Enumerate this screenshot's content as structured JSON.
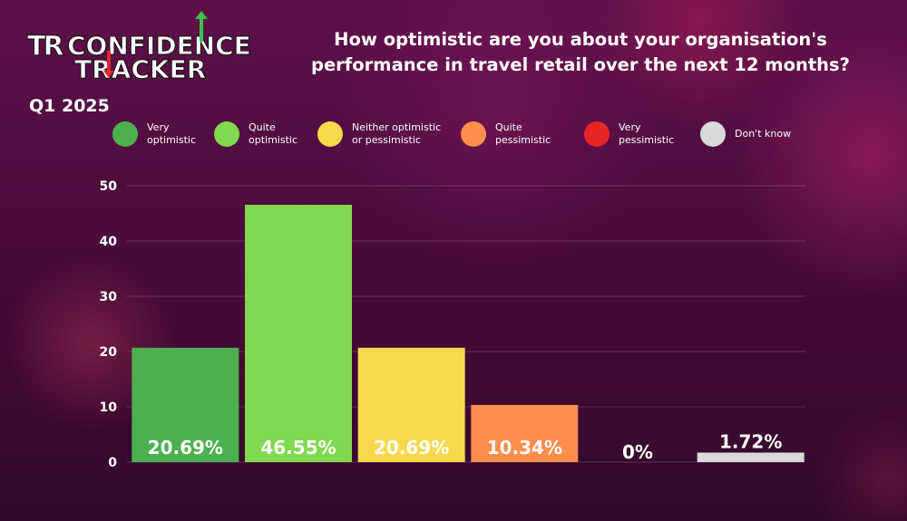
{
  "logo": {
    "prefix": "TR",
    "line1": "CONFIDENCE",
    "line2": "TRACKER",
    "up_arrow_color": "#3cc24a",
    "down_arrow_color": "#e3262b"
  },
  "period": "Q1 2025",
  "question": "How optimistic are you about your organisation's performance in travel retail over the next 12 months?",
  "legend": [
    {
      "label": "Very\noptimistic",
      "color": "#4cb050"
    },
    {
      "label": "Quite\noptimistic",
      "color": "#80d94e"
    },
    {
      "label": "Neither optimistic\nor pessimistic",
      "color": "#f7d94c"
    },
    {
      "label": "Quite\npessimistic",
      "color": "#ff8e4d"
    },
    {
      "label": "Very\npessimistic",
      "color": "#e82525"
    },
    {
      "label": "Don't know",
      "color": "#d9d9d9"
    }
  ],
  "chart_data": {
    "type": "bar",
    "categories": [
      "Very optimistic",
      "Quite optimistic",
      "Neither optimistic or pessimistic",
      "Quite pessimistic",
      "Very pessimistic",
      "Don't know"
    ],
    "values": [
      20.69,
      46.55,
      20.69,
      10.34,
      0,
      1.72
    ],
    "data_labels": [
      "20.69%",
      "46.55%",
      "20.69%",
      "10.34%",
      "0%",
      "1.72%"
    ],
    "colors": [
      "#4cb050",
      "#80d94e",
      "#f7d94c",
      "#ff8e4d",
      "#e82525",
      "#d9d9d9"
    ],
    "ylim": [
      0,
      50
    ],
    "yticks": [
      0,
      10,
      20,
      30,
      40,
      50
    ],
    "grid": true,
    "legend": "top"
  }
}
